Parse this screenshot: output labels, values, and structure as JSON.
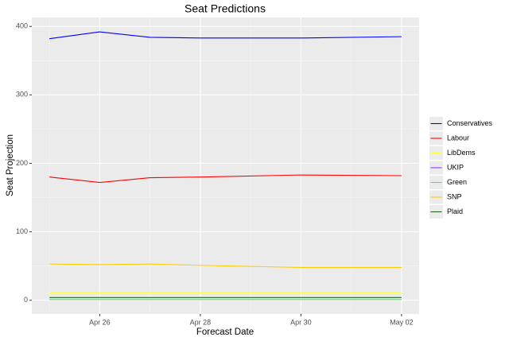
{
  "chart_data": {
    "type": "line",
    "title": "Seat Predictions",
    "x_label": "Forecast Date",
    "y_label": "Seat Projection",
    "x": [
      "Apr 25",
      "Apr 26",
      "Apr 27",
      "Apr 28",
      "Apr 30",
      "May 02"
    ],
    "series": [
      {
        "name": "Conservatives",
        "color": "#0000ff",
        "values": [
          382,
          392,
          384,
          383,
          383,
          385
        ]
      },
      {
        "name": "Labour",
        "color": "#ff0000",
        "values": [
          180,
          172,
          179,
          180,
          183,
          182
        ]
      },
      {
        "name": "LibDems",
        "color": "#ffff33",
        "values": [
          11,
          11,
          11,
          11,
          11,
          11
        ]
      },
      {
        "name": "UKIP",
        "color": "#9933ff",
        "values": [
          1,
          1,
          1,
          1,
          1,
          1
        ]
      },
      {
        "name": "Green",
        "color": "#66dd66",
        "values": [
          1,
          1,
          1,
          1,
          1,
          1
        ]
      },
      {
        "name": "SNP",
        "color": "#ffcc00",
        "values": [
          53,
          52,
          53,
          51,
          48,
          48
        ]
      },
      {
        "name": "Plaid",
        "color": "#226622",
        "values": [
          4,
          4,
          4,
          4,
          4,
          4
        ]
      }
    ],
    "xlim": [
      "Apr 25",
      "May 02"
    ],
    "xticks": [
      "Apr 26",
      "Apr 28",
      "Apr 30",
      "May 02"
    ],
    "ylim": [
      -20,
      413
    ],
    "yticks": [
      0,
      100,
      200,
      300,
      400
    ],
    "grid": true,
    "legend": "right"
  }
}
